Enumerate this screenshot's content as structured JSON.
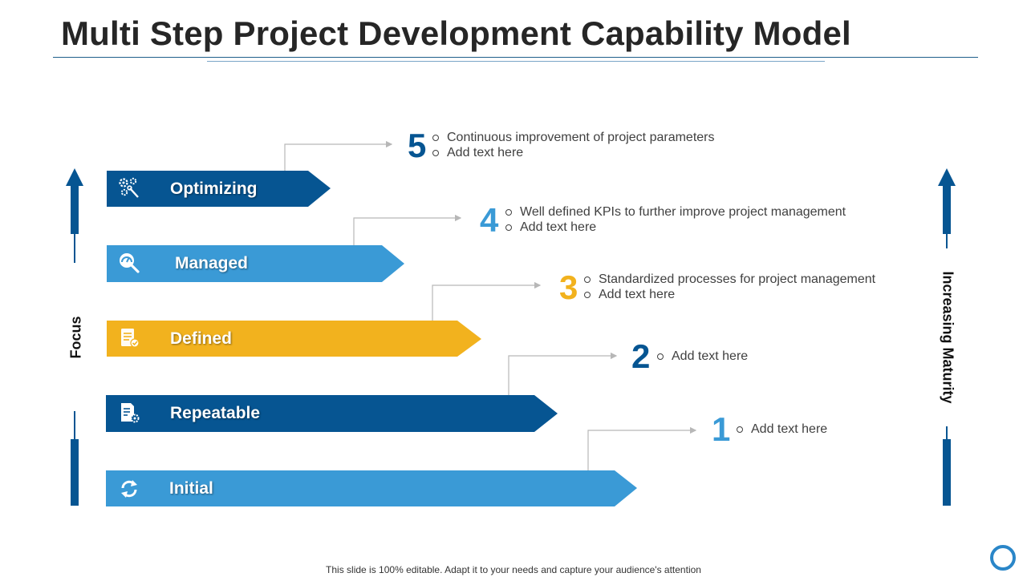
{
  "title": "Multi Step Project Development Capability Model",
  "focus_label": "Focus",
  "maturity_label": "Increasing Maturity",
  "footer": "This slide is 100% editable. Adapt it to your needs and capture your audience's attention",
  "colors": {
    "dark_blue": "#065592",
    "light_blue": "#3a9ad6",
    "yellow": "#f2b21e",
    "connector": "#b7b7b7"
  },
  "steps": [
    {
      "label": "Optimizing",
      "icon": "gears-wrench-icon",
      "color": "#065592",
      "number": "5",
      "number_color": "#065592",
      "bullets": [
        "Continuous  improvement  of project parameters",
        "Add text here"
      ]
    },
    {
      "label": "Managed",
      "icon": "gauge-search-icon",
      "color": "#3a9ad6",
      "number": "4",
      "number_color": "#3a9ad6",
      "bullets": [
        "Well defined KPIs to further  improve project management",
        "Add text here"
      ]
    },
    {
      "label": "Defined",
      "icon": "checklist-icon",
      "color": "#f2b21e",
      "number": "3",
      "number_color": "#f2b21e",
      "bullets": [
        "Standardized processes for project management",
        "Add text here"
      ]
    },
    {
      "label": "Repeatable",
      "icon": "document-gear-icon",
      "color": "#065592",
      "number": "2",
      "number_color": "#065592",
      "bullets": [
        "Add text here"
      ]
    },
    {
      "label": "Initial",
      "icon": "refresh-icon",
      "color": "#3a9ad6",
      "number": "1",
      "number_color": "#3a9ad6",
      "bullets": [
        "Add text here"
      ]
    }
  ]
}
